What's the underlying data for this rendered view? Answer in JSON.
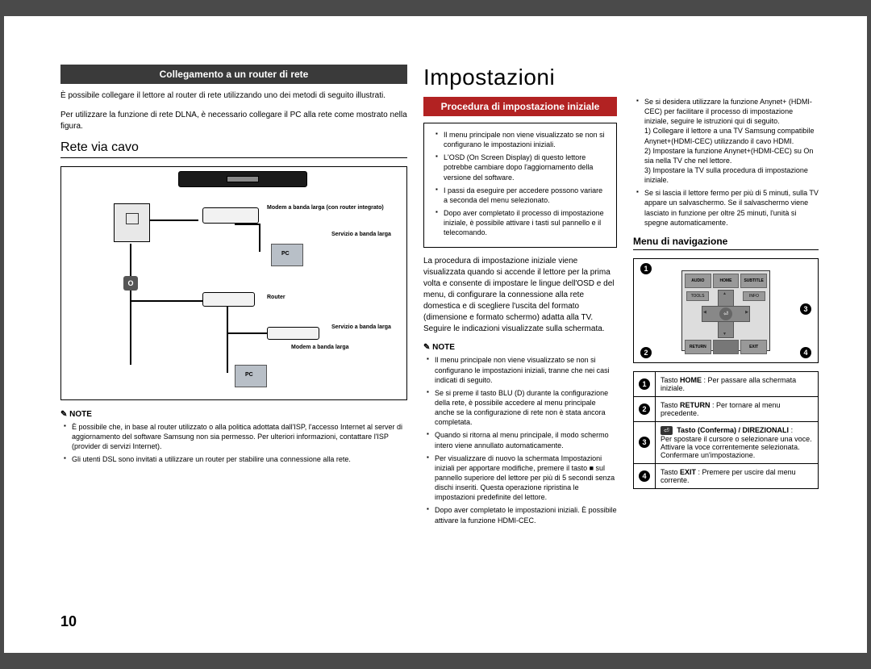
{
  "page_number": "10",
  "left": {
    "header": "Collegamento a un router di rete",
    "intro": "È possibile collegare il lettore al router di rete utilizzando uno dei metodi di seguito illustrati.",
    "intro2": "Per utilizzare la funzione di rete DLNA, è necessario collegare il PC alla rete come mostrato nella figura.",
    "h2": "Rete via cavo",
    "diagram": {
      "modem_router_label": "Modem a banda larga\n(con router integrato)",
      "service1": "Servizio a\nbanda larga",
      "router_label": "Router",
      "pc_label": "PC",
      "pc_label2": "PC",
      "service2": "Servizio a\nbanda larga",
      "modem2": "Modem a banda\nlarga",
      "or_label": "O"
    },
    "note_label": "NOTE",
    "notes": [
      "È possibile che, in base al router utilizzato o alla politica adottata dall'ISP, l'accesso Internet al server di aggiornamento del software Samsung non sia permesso. Per ulteriori informazioni, contattare l'ISP (provider di servizi Internet).",
      "Gli utenti DSL sono invitati a utilizzare un router per stabilire una connessione alla rete."
    ]
  },
  "mid": {
    "h1": "Impostazioni",
    "header": "Procedura di impostazione iniziale",
    "box_notes": [
      "Il menu principale non viene visualizzato se non si configurano le impostazioni iniziali.",
      "L'OSD (On Screen Display) di questo lettore potrebbe cambiare dopo l'aggiornamento della versione del software.",
      "I passi da eseguire per accedere possono variare a seconda del menu selezionato.",
      "Dopo aver completato il processo di impostazione iniziale, è possibile attivare i tasti sul pannello e il telecomando."
    ],
    "para": "La procedura di impostazione iniziale viene visualizzata quando si accende il lettore per la prima volta e consente di impostare le lingue dell'OSD e del menu, di configurare la connessione alla rete domestica e di scegliere l'uscita del formato (dimensione e formato schermo) adatta alla TV. Seguire le indicazioni visualizzate sulla schermata.",
    "note_label": "NOTE",
    "notes2": [
      "Il menu principale non viene visualizzato se non si configurano le impostazioni iniziali, tranne che nei casi indicati di seguito.",
      "Se si preme il tasto BLU (D) durante la configurazione della rete, è possibile accedere al menu principale anche se la configurazione di rete non è stata ancora completata.",
      "Quando si ritorna al menu principale, il modo schermo intero viene annullato automaticamente.",
      "Per visualizzare di nuovo la schermata Impostazioni iniziali per apportare modifiche, premere il tasto ■ sul pannello superiore del lettore per più di 5 secondi senza dischi inseriti. Questa operazione ripristina le impostazioni predefinite del lettore.",
      "Dopo aver completato le impostazioni iniziali. È possibile attivare la funzione HDMI-CEC."
    ]
  },
  "right": {
    "box_notes": [
      "Se si desidera utilizzare la funzione Anynet+ (HDMI-CEC) per facilitare il processo di impostazione iniziale, seguire le istruzioni qui di seguito.",
      "1) Collegare il lettore a una TV Samsung compatibile Anynet+(HDMI-CEC) utilizzando il cavo HDMI.",
      "2) Impostare la funzione Anynet+(HDMI-CEC) su On sia nella TV che nel lettore.",
      "3) Impostare la TV sulla procedura di impostazione iniziale.",
      "Se si lascia il lettore fermo per più di 5 minuti, sulla TV appare un salvaschermo. Se il salvaschermo viene lasciato in funzione per oltre 25 minuti, l'unità si spegne automaticamente."
    ],
    "menu_nav": "Menu di navigazione",
    "remote": {
      "audio": "AUDIO",
      "home": "HOME",
      "subtitle": "SUBTITLE",
      "tools": "TOOLS",
      "info": "INFO",
      "return": "RETURN",
      "exit": "EXIT"
    },
    "markers": [
      "1",
      "2",
      "3",
      "4"
    ],
    "table": [
      {
        "n": "1",
        "html": "Tasto <b>HOME</b> : Per passare alla schermata iniziale."
      },
      {
        "n": "2",
        "html": "Tasto <b>RETURN</b> : Per tornare al menu precedente."
      },
      {
        "n": "3",
        "html": "<span class='key-cap'>⏎</span> <b>Tasto (Conferma) / DIREZIONALI</b> :<br>Per spostare il cursore o selezionare una voce.<br>Attivare la voce correntemente selezionata.<br>Confermare un'impostazione."
      },
      {
        "n": "4",
        "html": "Tasto <b>EXIT</b> : Premere per uscire dal menu corrente."
      }
    ]
  }
}
